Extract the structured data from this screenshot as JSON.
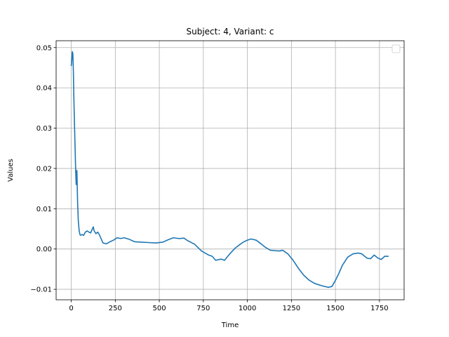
{
  "chart_data": {
    "type": "line",
    "title": "Subject: 4, Variant: c",
    "xlabel": "Time",
    "ylabel": "Values",
    "xlim": [
      -86,
      1890
    ],
    "ylim": [
      -0.0126,
      0.0517
    ],
    "xticks": [
      0,
      250,
      500,
      750,
      1000,
      1250,
      1500,
      1750
    ],
    "yticks": [
      -0.01,
      0.0,
      0.01,
      0.02,
      0.03,
      0.04,
      0.05
    ],
    "xtick_labels": [
      "0",
      "250",
      "500",
      "750",
      "1000",
      "1250",
      "1500",
      "1750"
    ],
    "ytick_labels": [
      "−0.01",
      "0.00",
      "0.01",
      "0.02",
      "0.03",
      "0.04",
      "0.05"
    ],
    "grid": true,
    "legend": "top-right (empty)",
    "line_color": "#1f77b4",
    "series": [
      {
        "x": [
          0,
          3,
          6,
          9,
          12,
          15,
          20,
          25,
          28,
          32,
          36,
          40,
          45,
          50,
          55,
          60,
          70,
          80,
          90,
          100,
          110,
          120,
          125,
          130,
          140,
          150,
          160,
          170,
          180,
          200,
          220,
          240,
          260,
          280,
          300,
          330,
          360,
          400,
          440,
          480,
          520,
          550,
          580,
          610,
          640,
          660,
          700,
          740,
          780,
          800,
          820,
          850,
          870,
          900,
          930,
          960,
          980,
          1000,
          1020,
          1050,
          1080,
          1100,
          1130,
          1160,
          1180,
          1200,
          1230,
          1260,
          1290,
          1320,
          1350,
          1380,
          1400,
          1430,
          1460,
          1480,
          1500,
          1520,
          1540,
          1570,
          1600,
          1630,
          1650,
          1680,
          1700,
          1720,
          1740,
          1760,
          1780,
          1800
        ],
        "y": [
          0.0455,
          0.047,
          0.049,
          0.0485,
          0.044,
          0.037,
          0.028,
          0.0195,
          0.016,
          0.0195,
          0.0115,
          0.007,
          0.0045,
          0.0035,
          0.0034,
          0.0036,
          0.0034,
          0.0042,
          0.0045,
          0.0042,
          0.004,
          0.005,
          0.0055,
          0.0045,
          0.0038,
          0.0042,
          0.0035,
          0.0025,
          0.0015,
          0.0013,
          0.0018,
          0.0022,
          0.0028,
          0.0026,
          0.0028,
          0.0024,
          0.0018,
          0.0017,
          0.0016,
          0.0015,
          0.0017,
          0.0023,
          0.0028,
          0.0026,
          0.0027,
          0.0021,
          0.0012,
          -0.0005,
          -0.0015,
          -0.0018,
          -0.0028,
          -0.0025,
          -0.0028,
          -0.0012,
          0.0002,
          0.0012,
          0.0018,
          0.0022,
          0.0025,
          0.0022,
          0.0012,
          0.0005,
          -0.0003,
          -0.0004,
          -0.0005,
          -0.0003,
          -0.0012,
          -0.0028,
          -0.0048,
          -0.0065,
          -0.0077,
          -0.0085,
          -0.0088,
          -0.0092,
          -0.0095,
          -0.0093,
          -0.0078,
          -0.006,
          -0.004,
          -0.002,
          -0.0012,
          -0.001,
          -0.0012,
          -0.0023,
          -0.0024,
          -0.0015,
          -0.0022,
          -0.0026,
          -0.0018,
          -0.0018
        ]
      }
    ]
  }
}
